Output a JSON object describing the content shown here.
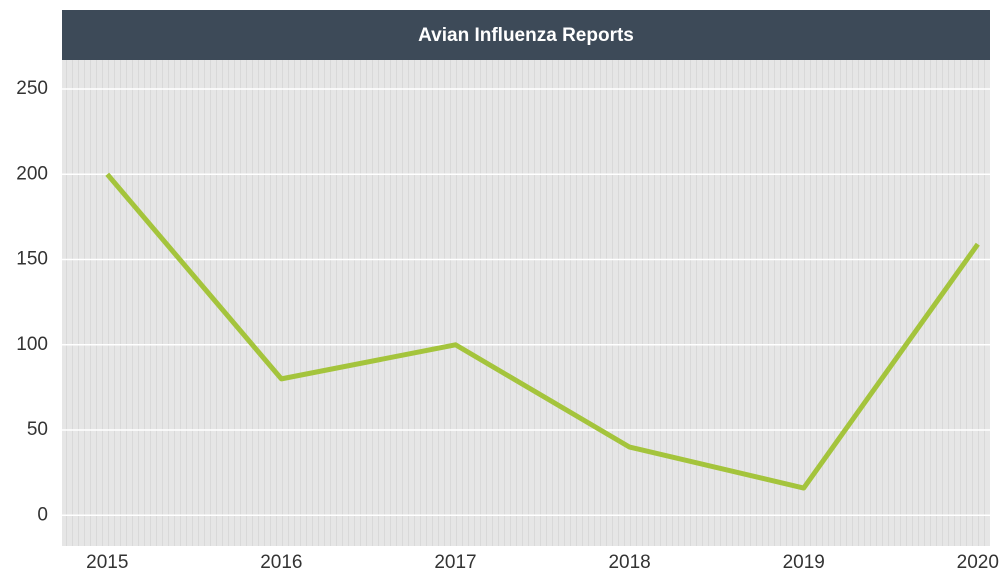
{
  "chart_data": {
    "type": "line",
    "title": "Avian Influenza Reports",
    "x": [
      2015,
      2016,
      2017,
      2018,
      2019,
      2020
    ],
    "series": [
      {
        "name": "Avian Influenza Reports",
        "color": "#a4c43c",
        "values": [
          200,
          80,
          100,
          40,
          16,
          159
        ]
      }
    ],
    "xlim": [
      2014.74,
      2020.07
    ],
    "xticks": [
      2015,
      2016,
      2017,
      2018,
      2019,
      2020
    ],
    "ylim": [
      -18,
      267
    ],
    "yticks": [
      0,
      50,
      100,
      150,
      200,
      250
    ],
    "grid": true
  }
}
